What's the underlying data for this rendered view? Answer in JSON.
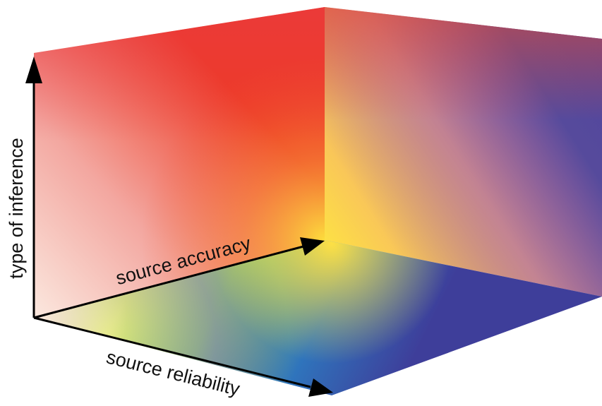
{
  "axes": {
    "vertical": {
      "label": "type of inference"
    },
    "depth": {
      "label": "source accuracy"
    },
    "horizontal": {
      "label": "source reliability"
    }
  },
  "colors": {
    "red": "#ee3b24",
    "yellow": "#fde045",
    "purple": "#a01c7f",
    "indigo": "#4a4aa0",
    "blue": "#2f74bc",
    "green": "#9bd16b",
    "pale_pink": "#fbe4dc",
    "orange": "#f05d34"
  }
}
